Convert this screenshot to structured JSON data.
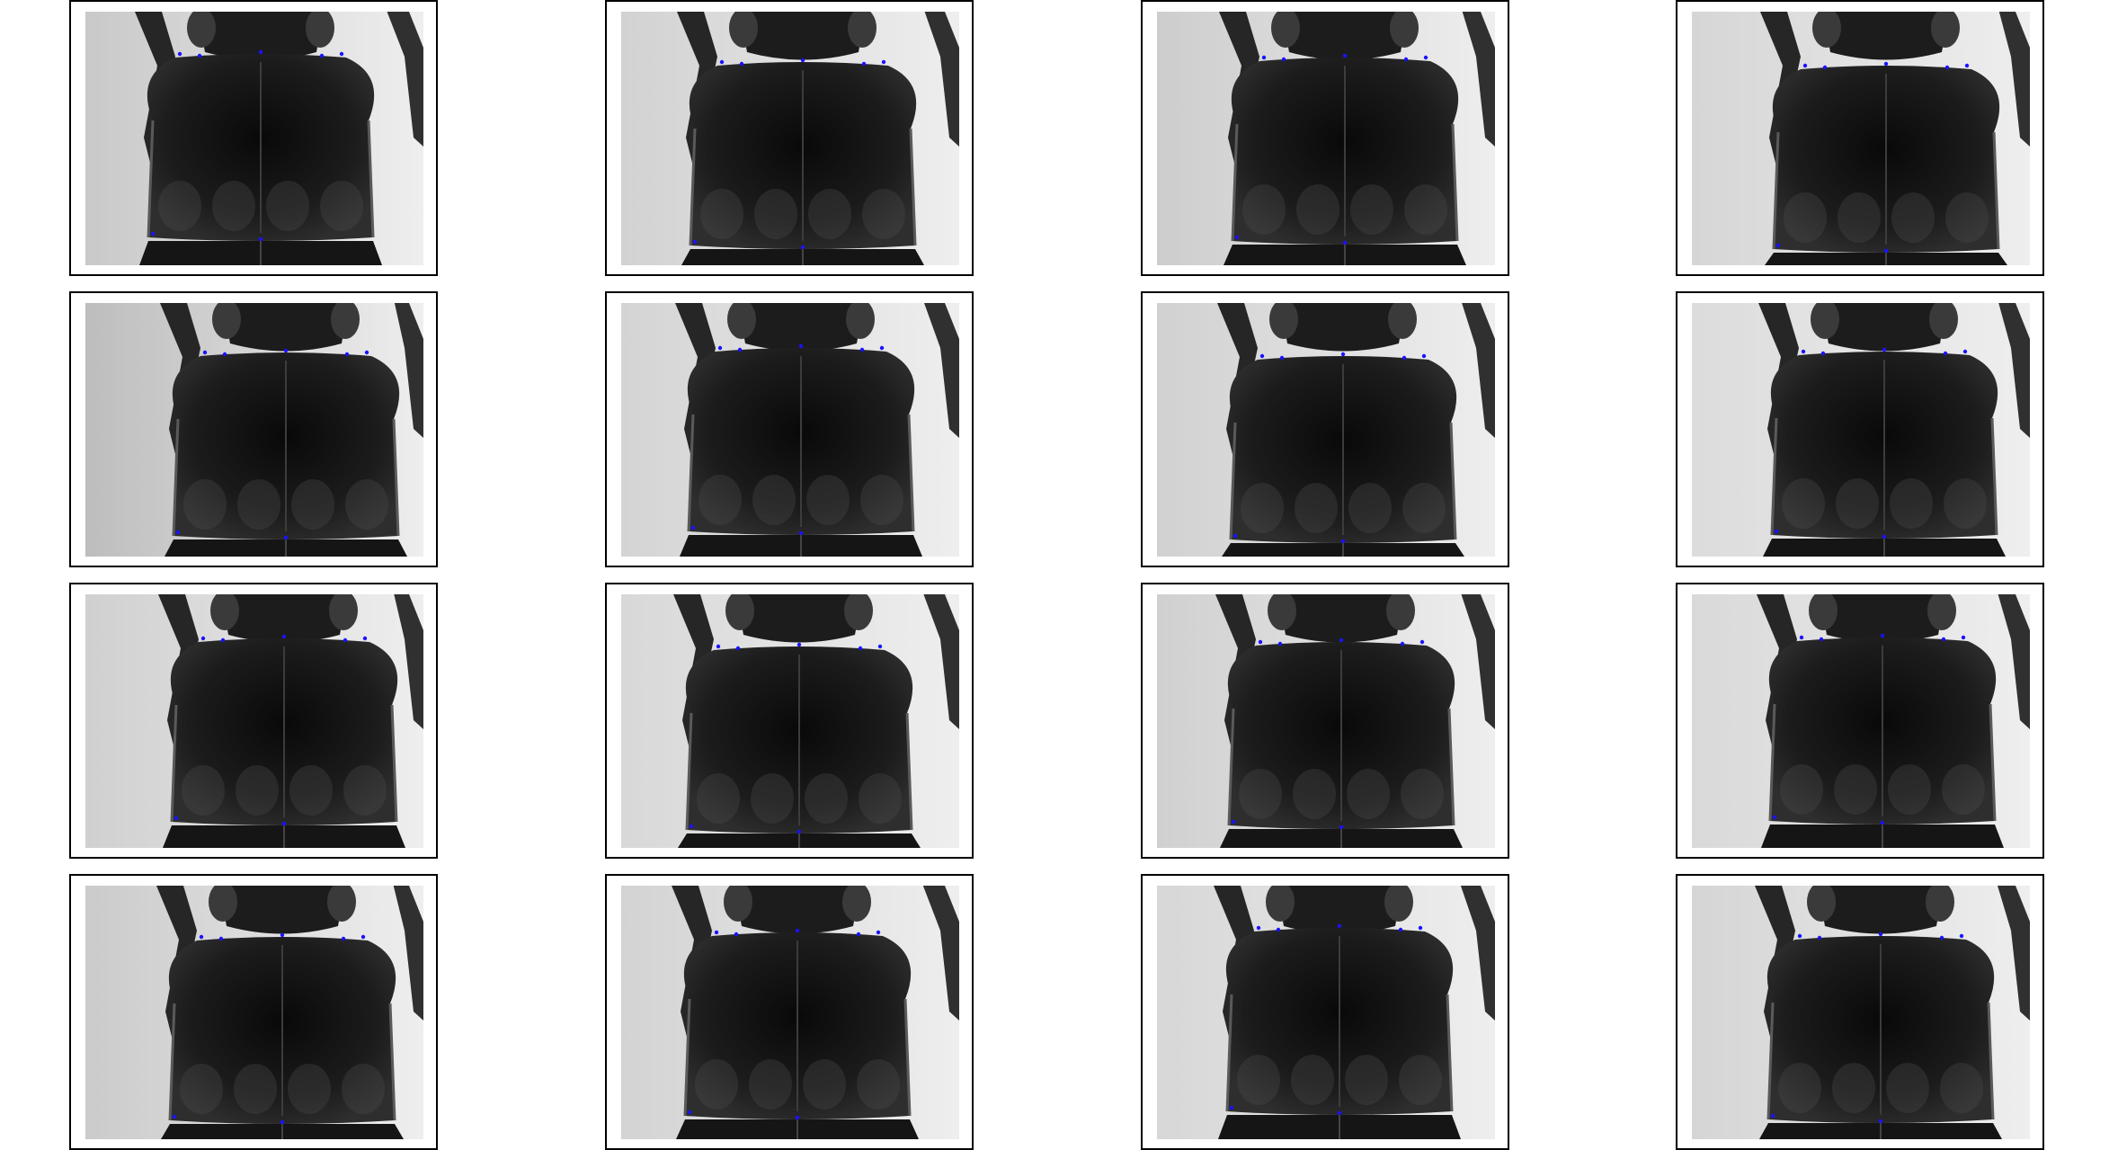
{
  "colors": {
    "panel_border": "#000000",
    "background_light": "#cfcfcf",
    "beetle_body": "#1c1c1c",
    "beetle_dark": "#090909",
    "highlight": "#5a5a5a",
    "landmark": "#1a12ff"
  },
  "panels": [
    {
      "row": 1,
      "col": 1,
      "bg": "#c9c9c9",
      "landmarks": 7
    },
    {
      "row": 1,
      "col": 2,
      "bg": "#d2d2d2",
      "landmarks": 7
    },
    {
      "row": 1,
      "col": 3,
      "bg": "#cdcdcd",
      "landmarks": 7
    },
    {
      "row": 1,
      "col": 4,
      "bg": "#d6d6d6",
      "landmarks": 7
    },
    {
      "row": 2,
      "col": 1,
      "bg": "#bdbdbd",
      "landmarks": 7
    },
    {
      "row": 2,
      "col": 2,
      "bg": "#d4d4d4",
      "landmarks": 7
    },
    {
      "row": 2,
      "col": 3,
      "bg": "#d1d1d1",
      "landmarks": 7
    },
    {
      "row": 2,
      "col": 4,
      "bg": "#dcdcdc",
      "landmarks": 7
    },
    {
      "row": 3,
      "col": 1,
      "bg": "#d0d0d0",
      "landmarks": 7
    },
    {
      "row": 3,
      "col": 2,
      "bg": "#d8d8d8",
      "landmarks": 7
    },
    {
      "row": 3,
      "col": 3,
      "bg": "#d0d0d0",
      "landmarks": 7
    },
    {
      "row": 3,
      "col": 4,
      "bg": "#d9d9d9",
      "landmarks": 7
    },
    {
      "row": 4,
      "col": 1,
      "bg": "#cbcbcb",
      "landmarks": 7
    },
    {
      "row": 4,
      "col": 2,
      "bg": "#d3d3d3",
      "landmarks": 7
    },
    {
      "row": 4,
      "col": 3,
      "bg": "#d7d7d7",
      "landmarks": 7
    },
    {
      "row": 4,
      "col": 4,
      "bg": "#d5d5d5",
      "landmarks": 7
    }
  ]
}
